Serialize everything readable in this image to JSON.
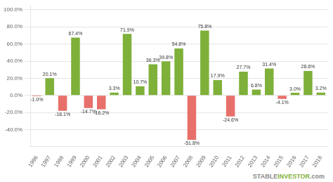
{
  "chart_data": {
    "type": "bar",
    "categories": [
      "1996",
      "1997",
      "1998",
      "1999",
      "2000",
      "2001",
      "2002",
      "2003",
      "2004",
      "2005",
      "2006",
      "2007",
      "2008",
      "2009",
      "2010",
      "2011",
      "2012",
      "2013",
      "2014",
      "2015",
      "2016",
      "2017",
      "2018"
    ],
    "values": [
      -1.0,
      20.1,
      -18.1,
      67.4,
      -14.7,
      -16.2,
      3.3,
      71.9,
      10.7,
      36.3,
      39.8,
      54.8,
      -51.8,
      75.8,
      17.9,
      -24.6,
      27.7,
      6.8,
      31.4,
      -4.1,
      3.0,
      28.6,
      3.2
    ],
    "value_labels": [
      "-1.0%",
      "20.1%",
      "-18.1%",
      "67.4%",
      "-14.7%",
      "-16.2%",
      "3.3%",
      "71.9%",
      "10.7%",
      "36.3%",
      "39.8%",
      "54.8%",
      "-51.8%",
      "75.8%",
      "17.9%",
      "-24.6%",
      "27.7%",
      "6.8%",
      "31.4%",
      "-4.1%",
      "3.0%",
      "28.6%",
      "3.2%"
    ],
    "colors": [
      "#e8706a",
      "#7fb03a",
      "#e8706a",
      "#7fb03a",
      "#e8706a",
      "#e8706a",
      "#7fb03a",
      "#7fb03a",
      "#7fb03a",
      "#7fb03a",
      "#7fb03a",
      "#7fb03a",
      "#e8706a",
      "#7fb03a",
      "#7fb03a",
      "#e8706a",
      "#7fb03a",
      "#7fb03a",
      "#7fb03a",
      "#e8706a",
      "#7fb03a",
      "#7fb03a",
      "#7fb03a"
    ],
    "ylim": [
      -60,
      105
    ],
    "yticks": [
      {
        "value": -40,
        "label": "-40.0%"
      },
      {
        "value": -20,
        "label": "-20.0%"
      },
      {
        "value": 0,
        "label": "0.0%"
      },
      {
        "value": 20,
        "label": "20.0%"
      },
      {
        "value": 40,
        "label": "40.0%"
      },
      {
        "value": 60,
        "label": "60.0%"
      },
      {
        "value": 80,
        "label": "80.0%"
      },
      {
        "value": 100,
        "label": "100.0%"
      }
    ],
    "grid": true,
    "data_labels": true,
    "annotations": [
      {
        "text": "STABLE",
        "color": "#888888"
      },
      {
        "text": "INVESTOR",
        "color": "#7fb03a"
      },
      {
        "text": ".com",
        "color": "#888888"
      }
    ]
  }
}
